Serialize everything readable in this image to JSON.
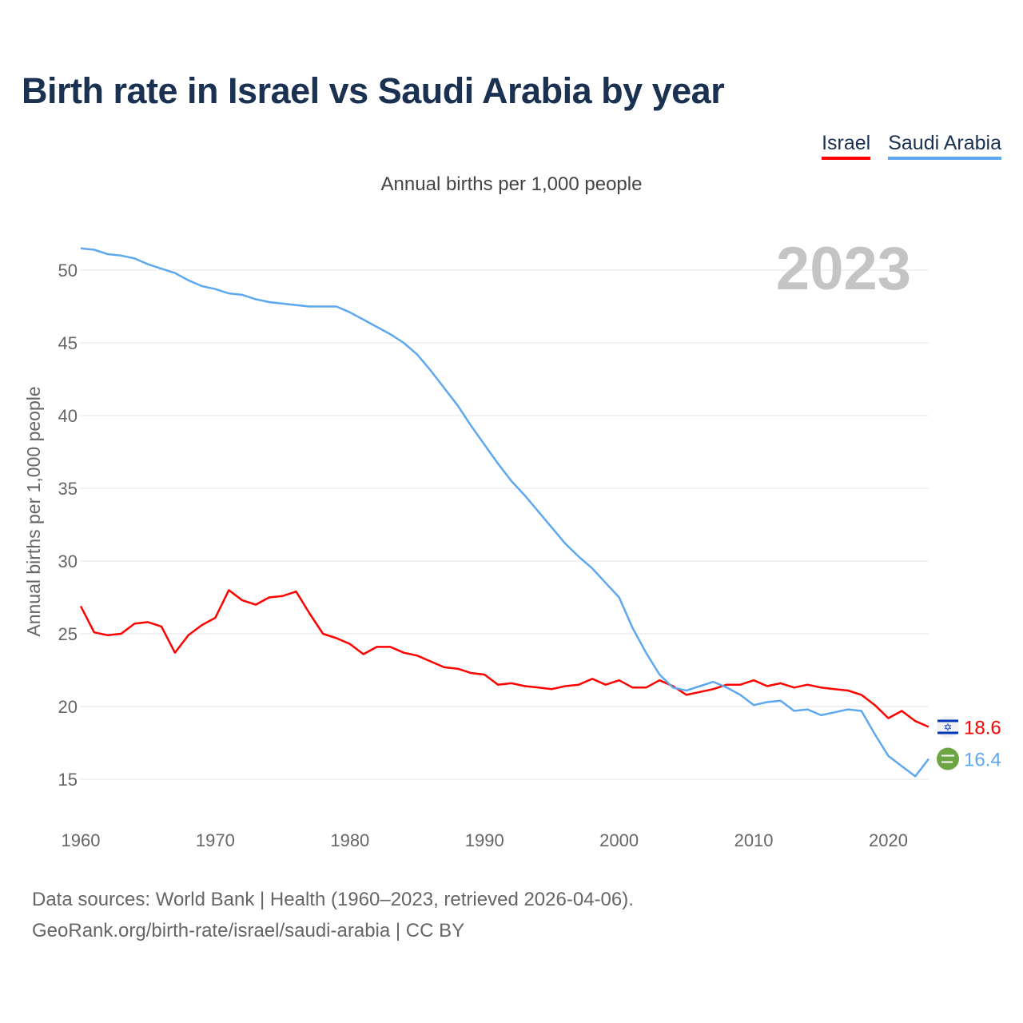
{
  "title": "Birth rate in Israel vs Saudi Arabia by year",
  "legend": [
    {
      "name": "Israel",
      "color": "#ff0000"
    },
    {
      "name": "Saudi Arabia",
      "color": "#5ea8ef"
    }
  ],
  "subtitle": "Annual births per 1,000 people",
  "year_label": "2023",
  "source_line1": "Data sources: World Bank | Health (1960–2023, retrieved 2026-04-06).",
  "source_line2": "GeoRank.org/birth-rate/israel/saudi-arabia | CC BY",
  "chart_data": {
    "type": "line",
    "title": "Birth rate in Israel vs Saudi Arabia by year",
    "xlabel": "",
    "ylabel": "Annual births per 1,000 people",
    "xlim": [
      1960,
      2023
    ],
    "ylim": [
      12.5,
      52.5
    ],
    "xticks": [
      1960,
      1970,
      1980,
      1990,
      2000,
      2010,
      2020
    ],
    "yticks": [
      15,
      20,
      25,
      30,
      35,
      40,
      45,
      50
    ],
    "grid": true,
    "legend_position": "top-right",
    "x_start": 1960,
    "series": [
      {
        "name": "Israel",
        "color": "#ff0000",
        "end_label": "18.6",
        "flag": "israel-flag",
        "values": [
          26.9,
          25.1,
          24.9,
          25.0,
          25.7,
          25.8,
          25.5,
          23.7,
          24.9,
          25.6,
          26.1,
          28.0,
          27.3,
          27.0,
          27.5,
          27.6,
          27.9,
          26.4,
          25.0,
          24.7,
          24.3,
          23.6,
          24.1,
          24.1,
          23.7,
          23.5,
          23.1,
          22.7,
          22.6,
          22.3,
          22.2,
          21.5,
          21.6,
          21.4,
          21.3,
          21.2,
          21.4,
          21.5,
          21.9,
          21.5,
          21.8,
          21.3,
          21.3,
          21.8,
          21.4,
          20.8,
          21.0,
          21.2,
          21.5,
          21.5,
          21.8,
          21.4,
          21.6,
          21.3,
          21.5,
          21.3,
          21.2,
          21.1,
          20.8,
          20.1,
          19.2,
          19.7,
          19.0,
          18.6
        ]
      },
      {
        "name": "Saudi Arabia",
        "color": "#5ea8ef",
        "end_label": "16.4",
        "flag": "saudi-arabia-flag",
        "values": [
          51.5,
          51.4,
          51.1,
          51.0,
          50.8,
          50.4,
          50.1,
          49.8,
          49.3,
          48.9,
          48.7,
          48.4,
          48.3,
          48.0,
          47.8,
          47.7,
          47.6,
          47.5,
          47.5,
          47.5,
          47.1,
          46.6,
          46.1,
          45.6,
          45.0,
          44.2,
          43.1,
          41.9,
          40.7,
          39.3,
          38.0,
          36.7,
          35.5,
          34.5,
          33.4,
          32.3,
          31.2,
          30.3,
          29.5,
          28.5,
          27.5,
          25.4,
          23.7,
          22.2,
          21.3,
          21.1,
          21.4,
          21.7,
          21.3,
          20.8,
          20.1,
          20.3,
          20.4,
          19.7,
          19.8,
          19.4,
          19.6,
          19.8,
          19.7,
          18.1,
          16.6,
          15.9,
          15.2,
          16.4
        ]
      }
    ]
  }
}
